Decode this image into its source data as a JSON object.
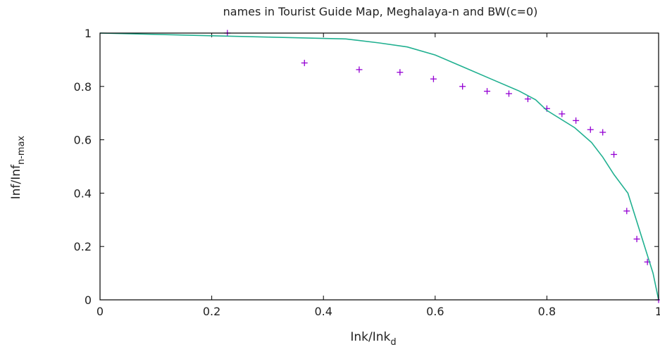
{
  "chart_data": {
    "type": "line",
    "title": "names in Tourist Guide Map, Meghalaya-n and BW(c=0)",
    "xlabel": {
      "main": "Ink/Ink",
      "sub": "d"
    },
    "ylabel": {
      "main": "Inf/Inf",
      "sub": "n-max"
    },
    "xlim": [
      0,
      1
    ],
    "ylim": [
      0,
      1
    ],
    "x_ticks": [
      0,
      0.2,
      0.4,
      0.6,
      0.8,
      1
    ],
    "y_ticks": [
      0,
      0.2,
      0.4,
      0.6,
      0.8,
      1
    ],
    "x_tick_labels": [
      "0",
      "0.2",
      "0.4",
      "0.6",
      "0.8",
      "1"
    ],
    "y_tick_labels": [
      "0",
      "0.2",
      "0.4",
      "0.6",
      "0.8",
      "1"
    ],
    "grid": false,
    "series": [
      {
        "kind": "points",
        "color": "#9400d3",
        "marker": "plus",
        "points": [
          [
            0.228,
            1.0
          ],
          [
            0.366,
            0.888
          ],
          [
            0.464,
            0.863
          ],
          [
            0.537,
            0.853
          ],
          [
            0.597,
            0.828
          ],
          [
            0.649,
            0.8
          ],
          [
            0.693,
            0.782
          ],
          [
            0.732,
            0.773
          ],
          [
            0.766,
            0.753
          ],
          [
            0.8,
            0.717
          ],
          [
            0.827,
            0.697
          ],
          [
            0.852,
            0.672
          ],
          [
            0.878,
            0.638
          ],
          [
            0.9,
            0.628
          ],
          [
            0.92,
            0.545
          ],
          [
            0.943,
            0.333
          ],
          [
            0.961,
            0.228
          ],
          [
            0.98,
            0.142
          ],
          [
            1.0,
            0.0
          ]
        ]
      },
      {
        "kind": "line",
        "color": "#20b090",
        "points": [
          [
            0.0,
            1.0
          ],
          [
            0.2,
            0.99
          ],
          [
            0.3,
            0.985
          ],
          [
            0.4,
            0.98
          ],
          [
            0.44,
            0.978
          ],
          [
            0.5,
            0.963
          ],
          [
            0.55,
            0.948
          ],
          [
            0.6,
            0.918
          ],
          [
            0.65,
            0.873
          ],
          [
            0.7,
            0.828
          ],
          [
            0.75,
            0.783
          ],
          [
            0.78,
            0.75
          ],
          [
            0.8,
            0.71
          ],
          [
            0.85,
            0.645
          ],
          [
            0.88,
            0.59
          ],
          [
            0.9,
            0.535
          ],
          [
            0.92,
            0.47
          ],
          [
            0.945,
            0.4
          ],
          [
            0.96,
            0.3
          ],
          [
            0.975,
            0.2
          ],
          [
            0.99,
            0.1
          ],
          [
            1.0,
            0.0
          ]
        ]
      }
    ]
  }
}
